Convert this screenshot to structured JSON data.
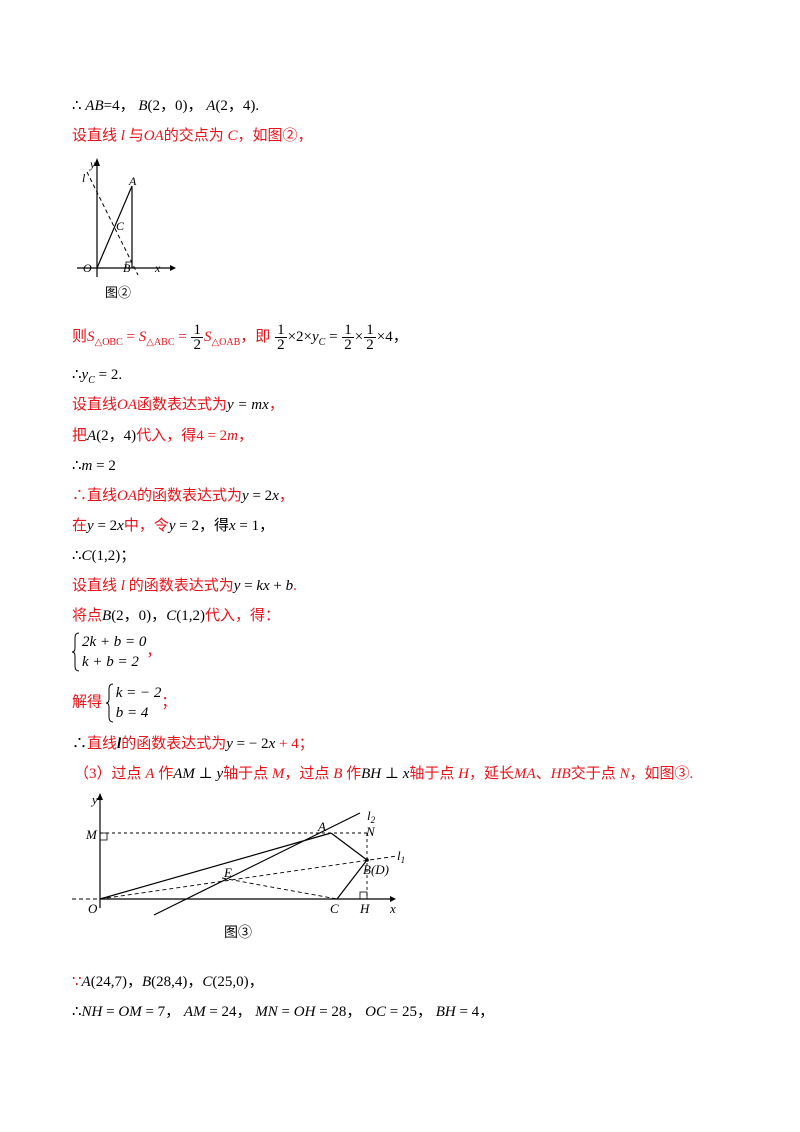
{
  "lines": {
    "l1": {
      "therefore": "∴",
      "t1": "AB",
      "t2": "=4，",
      "t3": "B",
      "t4": "(2，0)，",
      "t5": "A",
      "t6": "(2，4)."
    },
    "l2": {
      "t1": "设直线 ",
      "t2": "l",
      "t3": " 与",
      "t4": "OA",
      "t5": "的交点为 ",
      "t6": "C",
      "t7": "，如图②，"
    },
    "l3": {
      "t1": "则",
      "t2": "S",
      "t3": "△OBC",
      "t4": " = ",
      "t5": "S",
      "t6": "△ABC",
      "t7": " = ",
      "f1n": "1",
      "f1d": "2",
      "t8": "S",
      "t9": "△OAB",
      "t10": "，即",
      "f2n": "1",
      "f2d": "2",
      "t11": "×2×",
      "t12": "y",
      "t13": "C",
      "t14": " = ",
      "f3n": "1",
      "f3d": "2",
      "t15": "×",
      "f4n": "1",
      "f4d": "2",
      "t16": "×4，"
    },
    "l4": {
      "therefore": "∴",
      "t1": "y",
      "t2": "C",
      "t3": " = 2."
    },
    "l5": {
      "t1": "设直线",
      "t2": "OA",
      "t3": "函数表达式为",
      "t4": "y = mx",
      "t5": "，"
    },
    "l6": {
      "t1": "把",
      "t2": "A",
      "t3": "(2，4)",
      "t4": "代入，得4 = 2",
      "t5": "m",
      "t6": "，"
    },
    "l7": {
      "therefore": "∴",
      "t1": "m",
      "t2": " = 2"
    },
    "l8": {
      "therefore": "∴",
      "t1": "直线",
      "t2": "OA",
      "t3": "的函数表达式为",
      "t4": "y",
      "t5": " = 2",
      "t6": "x",
      "t7": "，"
    },
    "l9": {
      "t1": "在",
      "t2": "y",
      "t3": " = 2",
      "t4": "x",
      "t5": "中，令",
      "t6": "y",
      "t7": " = 2，得",
      "t8": "x",
      "t9": " = 1，"
    },
    "l10": {
      "therefore": "∴",
      "t1": "C",
      "t2": "(1,2)",
      "t3": "；"
    },
    "l11": {
      "t1": "设直线 ",
      "t2": "l",
      "t3": " 的函数表达式为",
      "t4": "y",
      "t5": " = ",
      "t6": "kx",
      "t7": " + ",
      "t8": "b",
      "t9": "."
    },
    "l12": {
      "t1": "将点",
      "t2": "B",
      "t3": "(2，0)，",
      "t4": "C",
      "t5": "(1,2)",
      "t6": "代入，得："
    },
    "l13": {
      "r1": "2k + b = 0",
      "r2": "k + b = 2",
      "t1": "，"
    },
    "l14": {
      "t1": "解得",
      "r1": "k = − 2",
      "r2": "b = 4",
      "t2": "；"
    },
    "l15": {
      "therefore": "∴",
      "t1": "直线",
      "t2": "l",
      "t3": "的函数表达式为",
      "t4": "y",
      "t5": " = − 2",
      "t6": "x",
      "t7": " + 4；"
    },
    "l16": {
      "t1": "（3）过点 ",
      "t2": "A",
      "t3": " 作",
      "t4": "AM",
      "t5": " ⊥ ",
      "t6": "y",
      "t7": "轴于点 ",
      "t8": "M",
      "t9": "，过点 ",
      "t10": "B",
      "t11": " 作",
      "t12": "BH",
      "t13": " ⊥ ",
      "t14": "x",
      "t15": "轴于点 ",
      "t16": "H",
      "t17": "，延长",
      "t18": "MA",
      "t19": "、",
      "t20": "HB",
      "t21": "交于点 ",
      "t22": "N",
      "t23": "，如图③."
    },
    "l17": {
      "because": "∵",
      "t1": "A",
      "t2": "(24,7)，",
      "t3": "B",
      "t4": "(28,4)，",
      "t5": "C",
      "t6": "(25,0)，"
    },
    "l18": {
      "therefore": "∴",
      "t1": "NH",
      "t2": " = ",
      "t3": "OM",
      "t4": " = 7，",
      "t5": "AM",
      "t6": " = 24，",
      "t7": "MN",
      "t8": " = ",
      "t9": "OH",
      "t10": " = 28，",
      "t11": "OC",
      "t12": " = 25，",
      "t13": "BH",
      "t14": " = 4，"
    }
  },
  "fig2": {
    "y": "y",
    "l": "l",
    "A": "A",
    "C": "C",
    "O": "O",
    "B": "B",
    "x": "x",
    "caption": "图②"
  },
  "fig3": {
    "y": "y",
    "M": "M",
    "A": "A",
    "N": "N",
    "l2": "l",
    "l2sub": "2",
    "l1": "l",
    "l1sub": "1",
    "E": "E",
    "BD": "B(D)",
    "O": "O",
    "C": "C",
    "H": "H",
    "x": "x",
    "caption": "图③"
  },
  "colors": {
    "red": "#e8141b",
    "black": "#000000"
  }
}
